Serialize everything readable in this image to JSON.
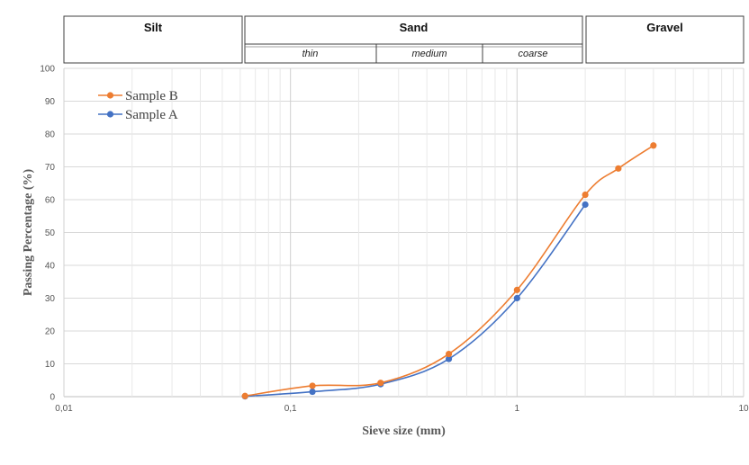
{
  "header_bands": [
    {
      "label": "Silt",
      "from": 0.01,
      "to": 0.0625,
      "subs": []
    },
    {
      "label": "Sand",
      "from": 0.0625,
      "to": 2,
      "subs": [
        {
          "label": "thin",
          "from": 0.0625,
          "to": 0.25
        },
        {
          "label": "medium",
          "from": 0.25,
          "to": 1
        },
        {
          "label": "coarse",
          "from": 1,
          "to": 2
        }
      ]
    },
    {
      "label": "Gravel",
      "from": 2,
      "to": 10,
      "subs": []
    }
  ],
  "chart_data": {
    "type": "line",
    "xscale": "log",
    "xlim": [
      0.01,
      10
    ],
    "ylim": [
      0,
      100
    ],
    "xticks": [
      0.01,
      0.1,
      1,
      10
    ],
    "xtick_labels": [
      "0,01",
      "0,1",
      "1",
      "10"
    ],
    "yticks": [
      0,
      10,
      20,
      30,
      40,
      50,
      60,
      70,
      80,
      90,
      100
    ],
    "xlabel": "Sieve size (mm)",
    "ylabel": "Passing Percentage (%)",
    "grid": true,
    "legend_position": "top-left",
    "series": [
      {
        "name": "Sample B",
        "color": "#ed7d31",
        "x": [
          0.063,
          0.125,
          0.25,
          0.5,
          1,
          2,
          2.8,
          4
        ],
        "y": [
          0.2,
          3.3,
          4.2,
          13,
          32.5,
          61.5,
          69.5,
          76.5
        ]
      },
      {
        "name": "Sample A",
        "color": "#4472c4",
        "x": [
          0.063,
          0.125,
          0.25,
          0.5,
          1,
          2
        ],
        "y": [
          0.1,
          1.5,
          3.8,
          11.5,
          30,
          58.5
        ]
      }
    ]
  }
}
